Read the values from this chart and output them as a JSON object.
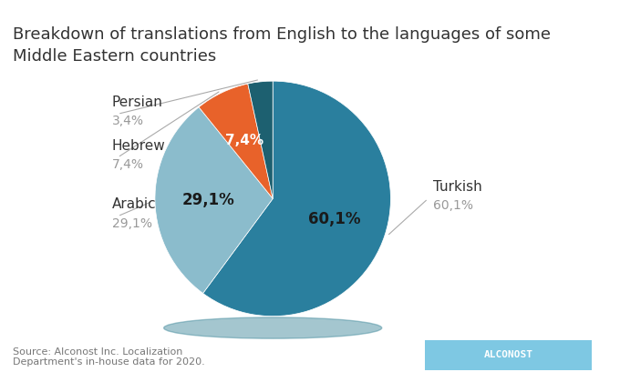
{
  "title": "Breakdown of translations from English to the languages of some\nMiddle Eastern countries",
  "slices": [
    {
      "label": "Turkish",
      "value": 60.1,
      "color": "#2a7f9e"
    },
    {
      "label": "Arabic",
      "value": 29.1,
      "color": "#8bbccc"
    },
    {
      "label": "Hebrew",
      "value": 7.4,
      "color": "#e8622a"
    },
    {
      "label": "Persian",
      "value": 3.4,
      "color": "#1d6070"
    }
  ],
  "source_text": "Source: Alconost Inc. Localization\nDepartment's in-house data for 2020.",
  "alconost_color": "#7ec8e3",
  "alconost_text": "ALCONOST",
  "title_fontsize": 13,
  "label_fontsize": 11,
  "pct_fontsize": 12,
  "source_fontsize": 8,
  "inner_pct_color": "#1a1a1a",
  "outer_label_color": "#333333",
  "outer_pct_color": "#999999"
}
